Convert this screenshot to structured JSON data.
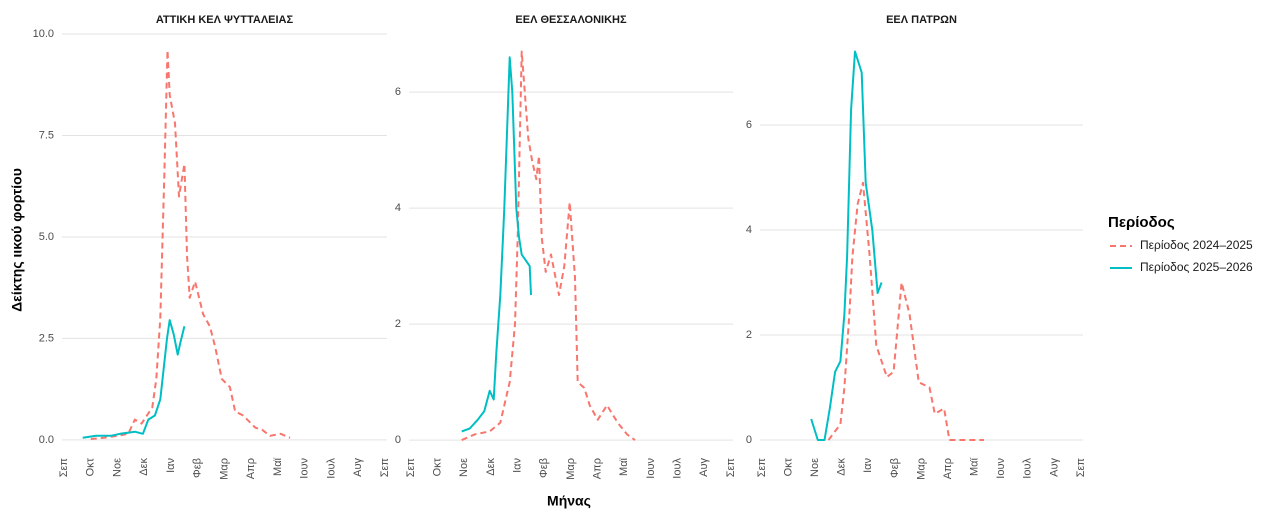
{
  "x_label": "Μήνας",
  "y_label": "Δείκτης ιικού φορτίου",
  "legend_title": "Περίοδος",
  "chart_data": [
    {
      "type": "line",
      "title": "ΑΤΤΙΚΗ ΚΕΛ ΨΥΤΤΑΛΕΙΑΣ",
      "grid": true,
      "xlim": [
        0,
        12
      ],
      "ylim": [
        -0.25,
        10.1
      ],
      "xticks": [
        {
          "value": 0,
          "label": "Σεπ"
        },
        {
          "value": 1,
          "label": "Οκτ"
        },
        {
          "value": 2,
          "label": "Νοε"
        },
        {
          "value": 3,
          "label": "Δεκ"
        },
        {
          "value": 4,
          "label": "Ιαν"
        },
        {
          "value": 5,
          "label": "Φεβ"
        },
        {
          "value": 6,
          "label": "Μαρ"
        },
        {
          "value": 7,
          "label": "Απρ"
        },
        {
          "value": 8,
          "label": "Μαϊ"
        },
        {
          "value": 9,
          "label": "Ιουν"
        },
        {
          "value": 10,
          "label": "Ιουλ"
        },
        {
          "value": 11,
          "label": "Αυγ"
        },
        {
          "value": 12,
          "label": "Σεπ"
        }
      ],
      "yticks": [
        {
          "value": 0,
          "label": "0.0"
        },
        2.5,
        {
          "value": 5,
          "label": "5.0"
        },
        7.5,
        {
          "value": 10,
          "label": "10.0"
        }
      ],
      "series": [
        {
          "name": "Περίοδος 2024–2025",
          "color": "#F8766D",
          "dash": true,
          "x": [
            1.0,
            1.5,
            2.0,
            2.4,
            2.65,
            2.9,
            3.1,
            3.3,
            3.45,
            3.6,
            3.75,
            3.87,
            3.95,
            4.15,
            4.3,
            4.5,
            4.6,
            4.7,
            4.9,
            5.2,
            5.45,
            5.65,
            5.9,
            6.2,
            6.4,
            6.7,
            7.15,
            7.4,
            7.7,
            8.1,
            8.45
          ],
          "values": [
            0.02,
            0.05,
            0.1,
            0.15,
            0.5,
            0.4,
            0.6,
            0.8,
            1.5,
            3.0,
            6.5,
            9.6,
            8.5,
            7.8,
            6.0,
            6.8,
            4.5,
            3.5,
            3.9,
            3.1,
            2.8,
            2.3,
            1.5,
            1.3,
            0.7,
            0.6,
            0.3,
            0.25,
            0.1,
            0.15,
            0.05
          ]
        },
        {
          "name": "Περίοδος 2025–2026",
          "color": "#00BFC4",
          "dash": false,
          "x": [
            0.7,
            1.2,
            1.75,
            2.1,
            2.65,
            2.95,
            3.15,
            3.4,
            3.6,
            3.7,
            3.85,
            3.95,
            4.1,
            4.25,
            4.35,
            4.5
          ],
          "values": [
            0.05,
            0.1,
            0.1,
            0.15,
            0.2,
            0.15,
            0.5,
            0.6,
            1.0,
            1.6,
            2.5,
            2.95,
            2.6,
            2.1,
            2.4,
            2.8
          ]
        }
      ]
    },
    {
      "type": "line",
      "title": "ΕΕΛ ΘΕΣΣΑΛΟΝΙΚΗΣ",
      "grid": true,
      "xlim": [
        0,
        12
      ],
      "ylim": [
        -0.17,
        7.07
      ],
      "xticks": [
        {
          "value": 0,
          "label": "Σεπ"
        },
        {
          "value": 1,
          "label": "Οκτ"
        },
        {
          "value": 2,
          "label": "Νοε"
        },
        {
          "value": 3,
          "label": "Δεκ"
        },
        {
          "value": 4,
          "label": "Ιαν"
        },
        {
          "value": 5,
          "label": "Φεβ"
        },
        {
          "value": 6,
          "label": "Μαρ"
        },
        {
          "value": 7,
          "label": "Απρ"
        },
        {
          "value": 8,
          "label": "Μαϊ"
        },
        {
          "value": 9,
          "label": "Ιουν"
        },
        {
          "value": 10,
          "label": "Ιουλ"
        },
        {
          "value": 11,
          "label": "Αυγ"
        },
        {
          "value": 12,
          "label": "Σεπ"
        }
      ],
      "yticks": [
        0,
        2,
        4,
        6
      ],
      "series": [
        {
          "name": "Περίοδος 2024–2025",
          "color": "#F8766D",
          "dash": true,
          "x": [
            1.9,
            2.4,
            2.95,
            3.35,
            3.7,
            3.9,
            4.0,
            4.15,
            4.4,
            4.55,
            4.7,
            4.8,
            4.9,
            5.05,
            5.25,
            5.55,
            5.75,
            5.95,
            6.15,
            6.25,
            6.5,
            6.7,
            7.0,
            7.35,
            7.75,
            8.1,
            8.4
          ],
          "values": [
            0,
            0.1,
            0.15,
            0.3,
            1.0,
            2.0,
            3.5,
            6.7,
            5.2,
            4.8,
            4.5,
            4.9,
            3.5,
            2.9,
            3.2,
            2.5,
            3.0,
            4.1,
            2.8,
            1.0,
            0.9,
            0.6,
            0.35,
            0.6,
            0.3,
            0.1,
            0
          ]
        },
        {
          "name": "Περίοδος 2025–2026",
          "color": "#00BFC4",
          "dash": false,
          "x": [
            1.9,
            2.2,
            2.5,
            2.75,
            2.95,
            3.1,
            3.2,
            3.35,
            3.45,
            3.5,
            3.7,
            3.8,
            3.95,
            4.05,
            4.15,
            4.3,
            4.45,
            4.5
          ],
          "values": [
            0.15,
            0.2,
            0.35,
            0.5,
            0.85,
            0.7,
            1.5,
            2.5,
            3.5,
            4.0,
            6.6,
            6.0,
            4.0,
            3.5,
            3.2,
            3.1,
            3.0,
            2.5
          ]
        }
      ]
    },
    {
      "type": "line",
      "title": "ΕΕΛ ΠΑΤΡΩΝ",
      "grid": true,
      "xlim": [
        0,
        12
      ],
      "ylim": [
        -0.19,
        7.81
      ],
      "xticks": [
        {
          "value": 0,
          "label": "Σεπ"
        },
        {
          "value": 1,
          "label": "Οκτ"
        },
        {
          "value": 2,
          "label": "Νοε"
        },
        {
          "value": 3,
          "label": "Δεκ"
        },
        {
          "value": 4,
          "label": "Ιαν"
        },
        {
          "value": 5,
          "label": "Φεβ"
        },
        {
          "value": 6,
          "label": "Μαρ"
        },
        {
          "value": 7,
          "label": "Απρ"
        },
        {
          "value": 8,
          "label": "Μαϊ"
        },
        {
          "value": 9,
          "label": "Ιουν"
        },
        {
          "value": 10,
          "label": "Ιουλ"
        },
        {
          "value": 11,
          "label": "Αυγ"
        },
        {
          "value": 12,
          "label": "Σεπ"
        }
      ],
      "yticks": [
        0,
        2,
        4,
        6
      ],
      "series": [
        {
          "name": "Περίοδος 2024–2025",
          "color": "#F8766D",
          "dash": true,
          "x": [
            2.5,
            2.95,
            3.1,
            3.3,
            3.4,
            3.6,
            3.8,
            4.05,
            4.3,
            4.7,
            4.95,
            5.25,
            5.55,
            5.9,
            6.3,
            6.5,
            6.85,
            7.05,
            8.35
          ],
          "values": [
            0,
            0.3,
            1.0,
            2.5,
            3.5,
            4.5,
            4.9,
            3.5,
            1.8,
            1.2,
            1.3,
            3.0,
            2.4,
            1.1,
            1.0,
            0.5,
            0.6,
            0,
            0
          ]
        },
        {
          "name": "Περίοδος 2025–2026",
          "color": "#00BFC4",
          "dash": false,
          "x": [
            1.85,
            2.1,
            2.35,
            2.55,
            2.75,
            2.95,
            3.1,
            3.2,
            3.35,
            3.5,
            3.75,
            3.9,
            4.15,
            4.35,
            4.5
          ],
          "values": [
            0.4,
            0,
            0,
            0.6,
            1.3,
            1.5,
            2.4,
            3.5,
            6.3,
            7.4,
            7.0,
            4.9,
            4.0,
            2.8,
            3.0
          ]
        }
      ]
    }
  ]
}
